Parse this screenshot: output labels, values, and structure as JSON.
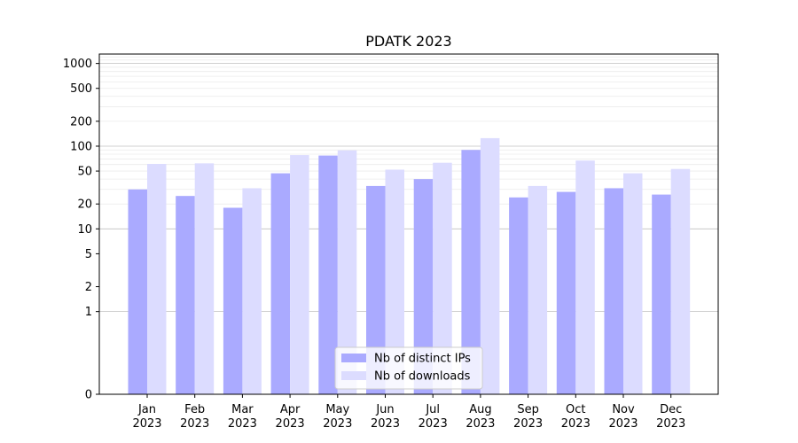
{
  "chart_data": {
    "type": "bar",
    "title": "PDATK 2023",
    "xlabel": "",
    "ylabel": "",
    "yscale": "symlog",
    "yticks": [
      0,
      1,
      2,
      5,
      10,
      20,
      50,
      100,
      200,
      500,
      1000
    ],
    "ylim": [
      0,
      1300
    ],
    "grid": true,
    "legend_position": "bottom-center",
    "categories": [
      [
        "Jan",
        "2023"
      ],
      [
        "Feb",
        "2023"
      ],
      [
        "Mar",
        "2023"
      ],
      [
        "Apr",
        "2023"
      ],
      [
        "May",
        "2023"
      ],
      [
        "Jun",
        "2023"
      ],
      [
        "Jul",
        "2023"
      ],
      [
        "Aug",
        "2023"
      ],
      [
        "Sep",
        "2023"
      ],
      [
        "Oct",
        "2023"
      ],
      [
        "Nov",
        "2023"
      ],
      [
        "Dec",
        "2023"
      ]
    ],
    "series": [
      {
        "name": "Nb of distinct IPs",
        "color": "#aaaaff",
        "values": [
          30,
          25,
          18,
          47,
          77,
          33,
          40,
          90,
          24,
          28,
          31,
          26
        ]
      },
      {
        "name": "Nb of downloads",
        "color": "#dcdcff",
        "values": [
          61,
          62,
          31,
          78,
          89,
          52,
          63,
          125,
          33,
          67,
          47,
          53
        ]
      }
    ]
  }
}
